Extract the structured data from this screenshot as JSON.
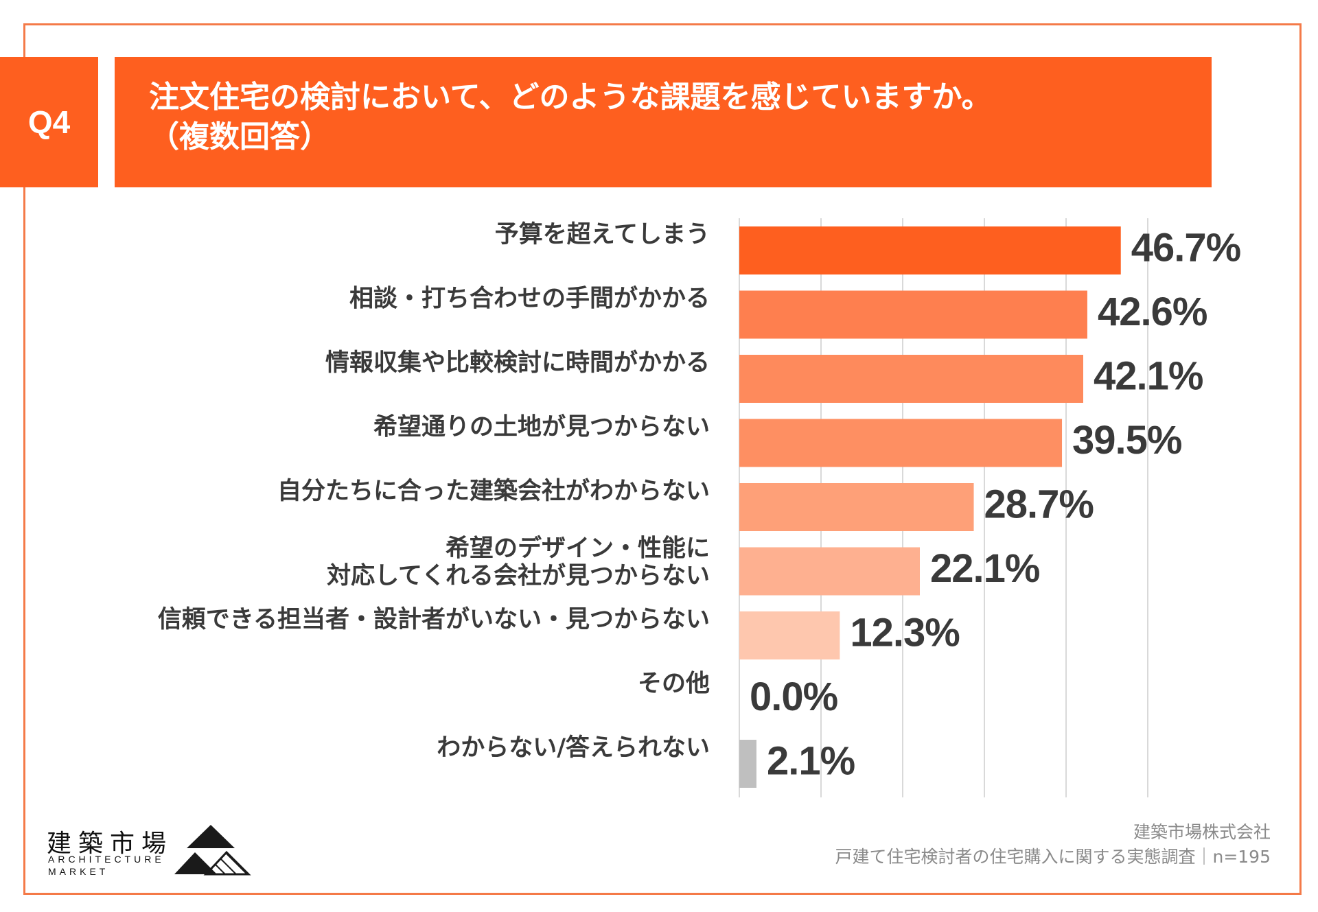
{
  "colors": {
    "accent": "#fe5f1f",
    "frame": "#f47a48",
    "grid": "#d9d9d9",
    "label_text": "#3a3a3a",
    "value_text": "#3a3a3a",
    "other_bar": "#bfbfbf"
  },
  "question": {
    "badge": "Q4",
    "title_line1": "注文住宅の検討において、どのような課題を感じていますか。",
    "title_line2": "（複数回答）"
  },
  "chart_data": {
    "type": "bar",
    "orientation": "horizontal",
    "categories": [
      "予算を超えてしまう",
      "相談・打ち合わせの手間がかかる",
      "情報収集や比較検討に時間がかかる",
      "希望通りの土地が見つからない",
      "自分たちに合った建築会社がわからない",
      "希望のデザイン・性能に\n対応してくれる会社が見つからない",
      "信頼できる担当者・設計者がいない・見つからない",
      "その他",
      "わからない/答えられない"
    ],
    "values": [
      46.7,
      42.6,
      42.1,
      39.5,
      28.7,
      22.1,
      12.3,
      0.0,
      2.1
    ],
    "value_labels": [
      "46.7%",
      "42.6%",
      "42.1%",
      "39.5%",
      "28.7%",
      "22.1%",
      "12.3%",
      "0.0%",
      "2.1%"
    ],
    "bar_colors": [
      "#fe5f1f",
      "#fe7f4f",
      "#fe8a5c",
      "#fe8f62",
      "#fea078",
      "#feb090",
      "#fec7ae",
      "#fec7ae",
      "#bfbfbf"
    ],
    "xlim": [
      0,
      50
    ],
    "grid": true,
    "title": "",
    "xlabel": "",
    "ylabel": ""
  },
  "footer": {
    "company": "建築市場株式会社",
    "survey": "戸建て住宅検討者の住宅購入に関する実態調査｜n=195"
  },
  "logo": {
    "jp": "建築市場",
    "en_line1": "ARCHITECTURE",
    "en_line2": "MARKET"
  }
}
